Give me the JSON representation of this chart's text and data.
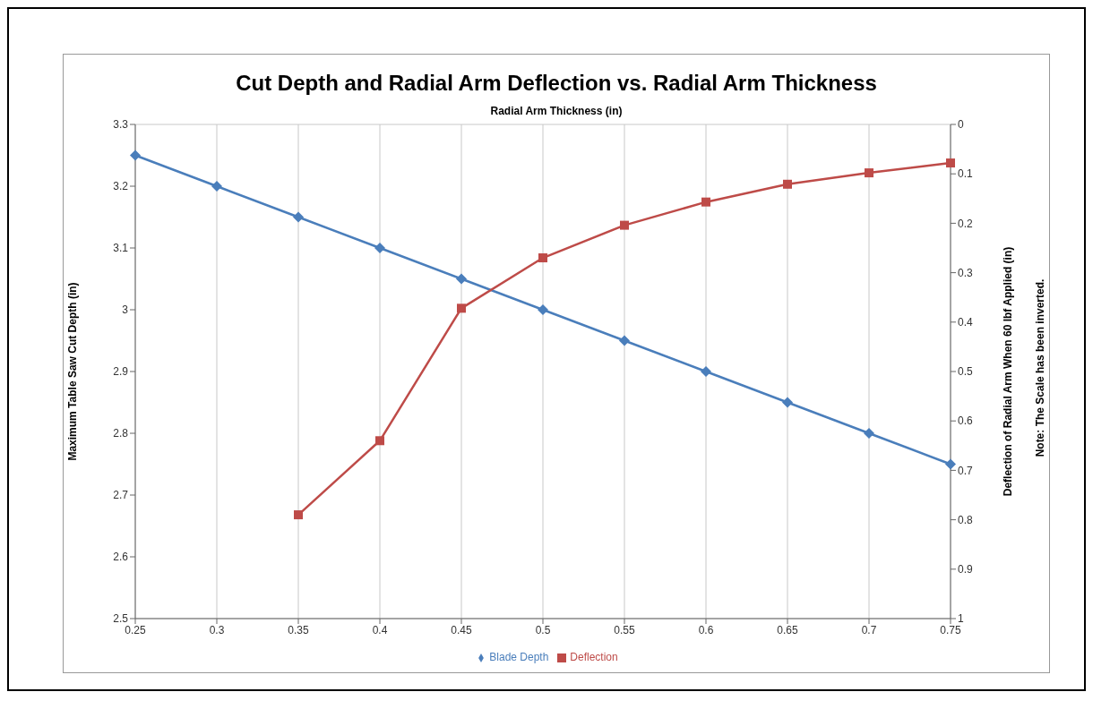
{
  "chart_data": {
    "type": "line",
    "title": "Cut Depth and Radial Arm Deflection vs. Radial Arm Thickness",
    "xlabel": "Radial Arm Thickness (in)",
    "ylabel": "Maximum Table Saw Cut Depth (in)",
    "y2label": "Deflection of Radial Arm When 60 lbf Applied (in)",
    "annotations": [
      "Note: The Scale has been inverted."
    ],
    "categories": [
      "0.25",
      "0.3",
      "0.35",
      "0.4",
      "0.45",
      "0.5",
      "0.55",
      "0.6",
      "0.65",
      "0.7",
      "0.75"
    ],
    "series": [
      {
        "name": "Blade Depth",
        "color": "#4a7ebb",
        "marker": "diamond",
        "values": [
          3.25,
          3.2,
          3.15,
          3.1,
          3.05,
          3.0,
          2.95,
          2.9,
          2.85,
          2.8,
          2.75
        ]
      },
      {
        "name": "Deflection",
        "color": "#be4b48",
        "marker": "square",
        "axis": "y2",
        "values": [
          null,
          null,
          0.79,
          0.64,
          0.372,
          0.27,
          0.204,
          0.157,
          0.121,
          0.098,
          0.078
        ]
      }
    ],
    "ylim": [
      2.5,
      3.3
    ],
    "yticks": [
      2.5,
      2.6,
      2.7,
      2.8,
      2.9,
      3,
      3.1,
      3.2,
      3.3
    ],
    "y2lim": [
      1,
      0
    ],
    "y2ticks": [
      0,
      0.1,
      0.2,
      0.3,
      0.4,
      0.5,
      0.6,
      0.7,
      0.8,
      0.9,
      1
    ],
    "grid": true,
    "legend": "bottom",
    "line_style": "solid"
  }
}
